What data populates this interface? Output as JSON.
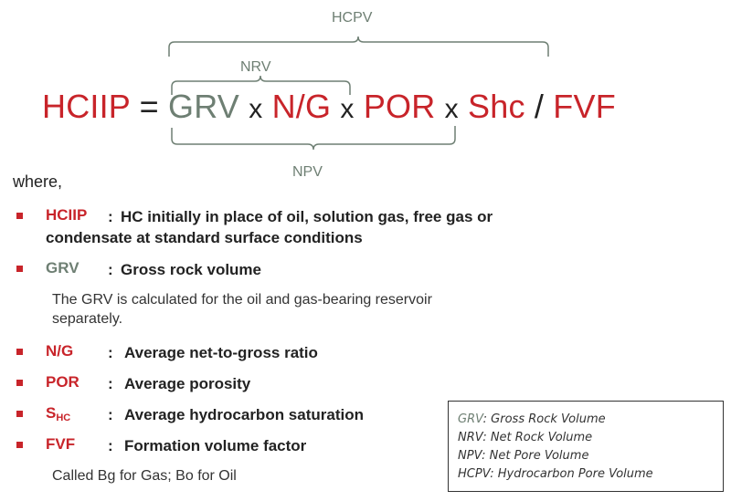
{
  "equation": {
    "hciip": "HCIIP",
    "eq": "=",
    "grv": "GRV",
    "x1": "x",
    "ng": "N/G",
    "x2": "x",
    "por": "POR",
    "x3": "x",
    "shc": "Shc",
    "div": "/",
    "fvf": "FVF"
  },
  "braces": {
    "hcpv": "HCPV",
    "nrv": "NRV",
    "npv": "NPV"
  },
  "where": "where,",
  "definitions": [
    {
      "term": "HCIIP",
      "sep": ":",
      "desc_line1": "HC initially in place of oil, solution gas, free gas or",
      "desc_line2": "condensate at standard surface conditions"
    },
    {
      "term": "GRV",
      "sep": ":",
      "desc": "Gross rock volume",
      "note_line1": "The GRV is calculated for the oil and gas-bearing reservoir",
      "note_line2": "separately."
    },
    {
      "term": "N/G",
      "sep": ":",
      "desc": "Average net-to-gross ratio"
    },
    {
      "term": "POR",
      "sep": ":",
      "desc": "Average porosity"
    },
    {
      "term_main": "S",
      "term_sub": "HC",
      "sep": ":",
      "desc": "Average hydrocarbon saturation"
    },
    {
      "term": "FVF",
      "sep": ":",
      "desc": "Formation volume factor",
      "note": "Called Bg for Gas; Bo for Oil"
    }
  ],
  "legend": {
    "grv_abbr": "GRV",
    "grv_text": ": Gross Rock Volume",
    "nrv_abbr": "NRV",
    "nrv_text": ": Net Rock Volume",
    "npv_abbr": "NPV",
    "npv_text": ": Net Pore Volume",
    "hcpv_abbr": "HCPV",
    "hcpv_text": ": Hydrocarbon Pore Volume"
  },
  "colors": {
    "red": "#c8242a",
    "green": "#6e7f73",
    "text": "#222222"
  }
}
